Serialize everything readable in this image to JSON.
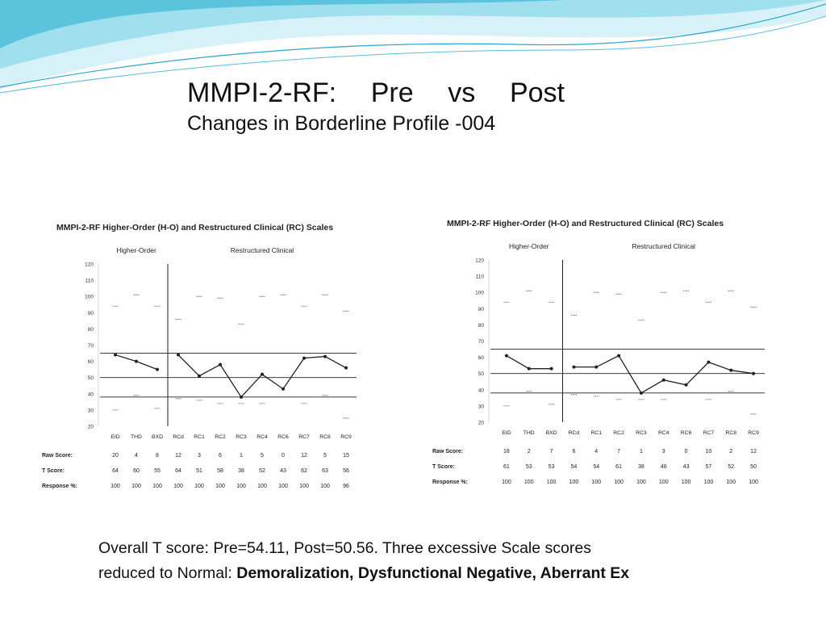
{
  "slide": {
    "title_words": [
      "MMPI-2-RF:",
      "Pre",
      "vs",
      "Post"
    ],
    "subtitle": "Changes in Borderline Profile -004",
    "summary_line1": "Overall T score:  Pre=54.11, Post=50.56.  Three excessive Scale scores",
    "summary_line2_prefix": "reduced to Normal: ",
    "summary_line2_bold": "Demoralization, Dysfunctional Negative, Aberrant Ex"
  },
  "colors": {
    "banner_light": "#c9eef6",
    "banner_mid": "#7fd3e6",
    "banner_deep": "#2aa7c9",
    "chart_panel": "#ffffff",
    "line": "#222222"
  },
  "chart_data": [
    {
      "type": "line",
      "title": "MMPI-2-RF Higher-Order (H-O) and Restructured Clinical (RC) Scales",
      "group_labels": [
        "Higher-Order",
        "Restructured Clinical"
      ],
      "categories": [
        "EID",
        "THD",
        "BXD",
        "RCd",
        "RC1",
        "RC2",
        "RC3",
        "RC4",
        "RC6",
        "RC7",
        "RC8",
        "RC9"
      ],
      "ylim": [
        20,
        120
      ],
      "yticks": [
        20,
        30,
        40,
        50,
        60,
        70,
        80,
        90,
        100,
        110,
        120
      ],
      "reference_lines": [
        65,
        50,
        38
      ],
      "segments": [
        [
          0,
          2
        ],
        [
          3,
          11
        ]
      ],
      "t_scores": [
        64,
        60,
        55,
        64,
        51,
        58,
        38,
        52,
        43,
        62,
        63,
        56
      ],
      "raw_scores": [
        20,
        4,
        8,
        12,
        3,
        6,
        1,
        5,
        0,
        12,
        5,
        15
      ],
      "response_pct": [
        100,
        100,
        100,
        100,
        100,
        100,
        100,
        100,
        100,
        100,
        100,
        96
      ],
      "row_labels": [
        "Raw Score:",
        "T Score:",
        "Response %:"
      ],
      "upper_marks": [
        94,
        101,
        94,
        86,
        100,
        99,
        83,
        100,
        101,
        94,
        101,
        91
      ],
      "lower_marks": [
        30,
        39,
        31,
        37,
        36,
        34,
        34,
        34,
        null,
        34,
        39,
        25
      ]
    },
    {
      "type": "line",
      "title": "MMPI-2-RF Higher-Order (H-O) and Restructured Clinical (RC) Scales",
      "group_labels": [
        "Higher-Order",
        "Restructured Clinical"
      ],
      "categories": [
        "EID",
        "THD",
        "BXD",
        "RCd",
        "RC1",
        "RC2",
        "RC3",
        "RC4",
        "RC6",
        "RC7",
        "RC8",
        "RC9"
      ],
      "ylim": [
        20,
        120
      ],
      "yticks": [
        20,
        30,
        40,
        50,
        60,
        70,
        80,
        90,
        100,
        110,
        120
      ],
      "reference_lines": [
        65,
        50,
        38
      ],
      "segments": [
        [
          0,
          2
        ],
        [
          3,
          11
        ]
      ],
      "t_scores": [
        61,
        53,
        53,
        54,
        54,
        61,
        38,
        46,
        43,
        57,
        52,
        50
      ],
      "raw_scores": [
        18,
        2,
        7,
        6,
        4,
        7,
        1,
        3,
        0,
        10,
        2,
        12
      ],
      "response_pct": [
        100,
        100,
        100,
        100,
        100,
        100,
        100,
        100,
        100,
        100,
        100,
        100
      ],
      "row_labels": [
        "Raw Score:",
        "T Score:",
        "Response %:"
      ],
      "upper_marks": [
        94,
        101,
        94,
        86,
        100,
        99,
        83,
        100,
        101,
        94,
        101,
        91
      ],
      "lower_marks": [
        30,
        39,
        31,
        37,
        36,
        34,
        34,
        34,
        null,
        34,
        39,
        25
      ]
    }
  ]
}
